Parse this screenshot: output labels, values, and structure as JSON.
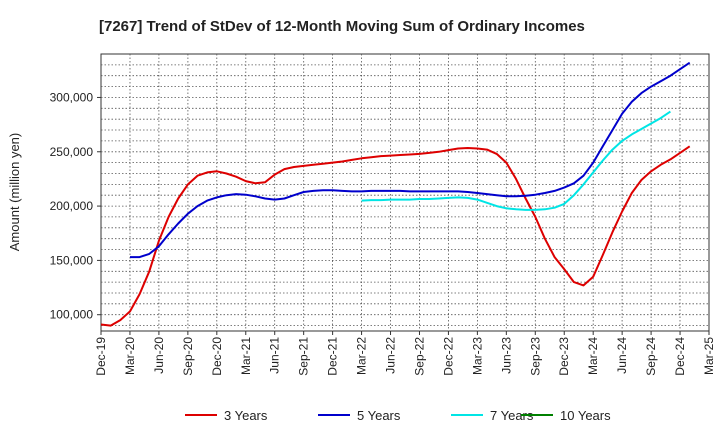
{
  "chart_data": {
    "type": "line",
    "title": "[7267]  Trend of StDev of 12-Month Moving Sum of Ordinary Incomes",
    "xlabel": "",
    "ylabel": "Amount (million yen)",
    "ylim": [
      85000,
      340000
    ],
    "yticks": [
      100000,
      150000,
      200000,
      250000,
      300000
    ],
    "ytick_labels": [
      "100,000",
      "150,000",
      "200,000",
      "250,000",
      "300,000"
    ],
    "grid": true,
    "legend_position": "bottom",
    "x_tick_labels": [
      "Dec-19",
      "Mar-20",
      "Jun-20",
      "Sep-20",
      "Dec-20",
      "Mar-21",
      "Jun-21",
      "Sep-21",
      "Dec-21",
      "Mar-22",
      "Jun-22",
      "Sep-22",
      "Dec-22",
      "Mar-23",
      "Jun-23",
      "Sep-23",
      "Dec-23",
      "Mar-24",
      "Jun-24",
      "Sep-24",
      "Dec-24",
      "Mar-25"
    ],
    "x_start": "Dec-19",
    "x_months_span": 63,
    "series": [
      {
        "name": "3 Years",
        "color": "#dd0000",
        "start_month": 0,
        "values": [
          91000,
          90000,
          95000,
          103000,
          119000,
          140000,
          168000,
          190000,
          207000,
          220000,
          228000,
          231000,
          232000,
          230000,
          227000,
          223000,
          221000,
          222000,
          229000,
          234000,
          236000,
          237000,
          238000,
          239000,
          240000,
          241000,
          242500,
          244000,
          245000,
          246000,
          246500,
          247000,
          247500,
          248000,
          249000,
          250000,
          251500,
          253000,
          253500,
          253000,
          252000,
          248000,
          240000,
          225000,
          207000,
          190000,
          170000,
          153000,
          142000,
          130000,
          127000,
          135000,
          155000,
          176000,
          195000,
          212000,
          224000,
          232000,
          238000,
          243000,
          249000,
          255000
        ]
      },
      {
        "name": "5 Years",
        "color": "#0000cc",
        "start_month": 3,
        "values": [
          153000,
          153000,
          156000,
          163000,
          174000,
          184000,
          193000,
          200000,
          205000,
          208000,
          210000,
          211000,
          210500,
          209000,
          207000,
          206000,
          207000,
          210000,
          213000,
          214000,
          214500,
          214500,
          214000,
          213500,
          213500,
          214000,
          214000,
          214000,
          214000,
          213500,
          213500,
          213500,
          213500,
          213500,
          213500,
          213000,
          212000,
          211000,
          210000,
          209000,
          209000,
          209500,
          210500,
          212000,
          214000,
          217000,
          221000,
          228000,
          240000,
          255000,
          270000,
          285000,
          296000,
          304000,
          310000,
          315000,
          320000,
          326000,
          332000
        ]
      },
      {
        "name": "7 Years",
        "color": "#00e5e5",
        "start_month": 27,
        "values": [
          205000,
          205500,
          205500,
          206000,
          206000,
          206000,
          206500,
          206500,
          207000,
          207500,
          208000,
          207500,
          206000,
          203000,
          200000,
          198000,
          197000,
          196500,
          196500,
          197000,
          198500,
          202000,
          210000,
          220000,
          231000,
          242000,
          252000,
          260000,
          266000,
          271000,
          276000,
          281000,
          287000
        ]
      },
      {
        "name": "10 Years",
        "color": "#008000",
        "start_month": 0,
        "values": []
      }
    ]
  }
}
